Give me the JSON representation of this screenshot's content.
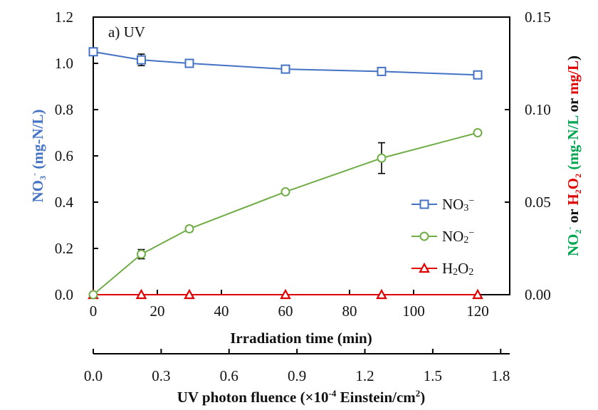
{
  "chart_data": {
    "type": "line",
    "panel_label": "a) UV",
    "x": [
      0,
      15,
      30,
      60,
      90,
      120
    ],
    "xlabel": "Irradiation time (min)",
    "xlim": [
      0,
      130
    ],
    "xticks": [
      0,
      20,
      40,
      60,
      80,
      100,
      120
    ],
    "x_tick_labels": [
      "0",
      "20",
      "40",
      "60",
      "80",
      "100",
      "120"
    ],
    "secondary_x": {
      "label_prefix": "UV photon fluence (×10",
      "label_exp": "-4",
      "label_mid": " Einstein/cm",
      "label_sup": "2",
      "label_suffix": ")",
      "xlim": [
        0,
        1.84
      ],
      "ticks": [
        0.0,
        0.3,
        0.6,
        0.9,
        1.2,
        1.5,
        1.8
      ],
      "tick_labels": [
        "0.0",
        "0.3",
        "0.6",
        "0.9",
        "1.2",
        "1.5",
        "1.8"
      ]
    },
    "ylabel_left": {
      "main": "NO",
      "sub": "3",
      "sup": "-",
      "rest": " (mg-N/L)",
      "color": "#4472C4"
    },
    "ylim_left": [
      0,
      1.2
    ],
    "yticks_left": [
      "0.0",
      "0.2",
      "0.4",
      "0.6",
      "0.8",
      "1.0",
      "1.2"
    ],
    "ylabel_right": {
      "part1": "NO",
      "part1_sub": "2",
      "part1_sup": "-",
      "part1_color": "#00A550",
      "or1": " or ",
      "part2": "H",
      "part2_sub": "2",
      "part2_b": "O",
      "part2_sub2": "2",
      "part2_color": "#E00000",
      "part3": " (mg-N/L",
      "part3_color": "#00A550",
      "or2": " or ",
      "part4": "mg/L",
      "part4_color": "#E00000",
      "close": ")"
    },
    "ylim_right": [
      0,
      0.15
    ],
    "yticks_right": [
      "0.00",
      "0.05",
      "0.10",
      "0.15"
    ],
    "series": [
      {
        "name": "NO3−",
        "legend": {
          "main": "NO",
          "sub": "3",
          "sup": "−"
        },
        "axis": "left",
        "marker": "square",
        "color": "#4472C4",
        "values": [
          1.05,
          1.015,
          1.0,
          0.975,
          0.965,
          0.95
        ],
        "errors": [
          0.01,
          0.025,
          0.015,
          0.005,
          0.015,
          0.005
        ]
      },
      {
        "name": "NO2−",
        "legend": {
          "main": "NO",
          "sub": "2",
          "sup": "−"
        },
        "axis": "right",
        "marker": "circle",
        "color": "#70AD47",
        "values": [
          0.0,
          0.0219,
          0.0356,
          0.0556,
          0.0738,
          0.0875
        ],
        "errors": [
          0.0,
          0.0025,
          0.0015,
          0.0,
          0.0083,
          0.001
        ]
      },
      {
        "name": "H2O2",
        "legend": {
          "main": "H",
          "sub": "2",
          "main2": "O",
          "sub2": "2"
        },
        "axis": "right",
        "marker": "triangle",
        "color": "#E00000",
        "values": [
          0,
          0,
          0,
          0,
          0,
          0
        ],
        "errors": [
          0,
          0,
          0,
          0,
          0,
          0
        ]
      }
    ],
    "legend_position": "center-right",
    "grid": false
  }
}
